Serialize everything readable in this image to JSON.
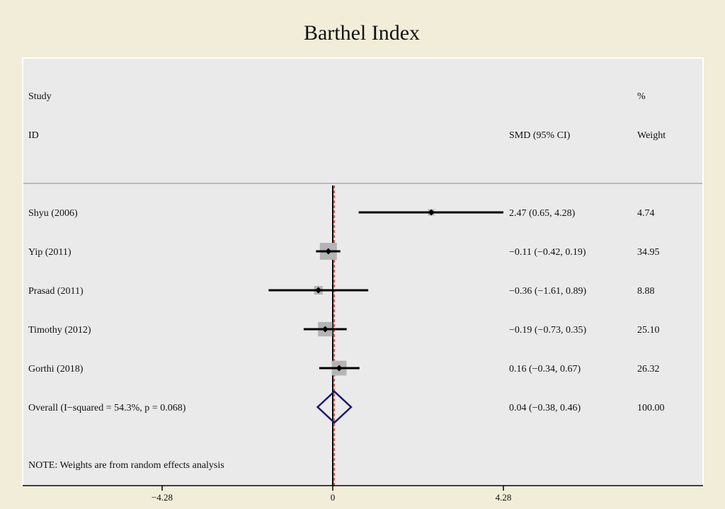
{
  "chart_data": {
    "type": "forest",
    "title": "Barthel Index",
    "headers": {
      "study_line1": "Study",
      "study_line2": "ID",
      "effect": "SMD (95% CI)",
      "weight_line1": "%",
      "weight_line2": "Weight"
    },
    "studies": [
      {
        "label": "Shyu (2006)",
        "effect": 2.47,
        "lower": 0.65,
        "upper": 4.28,
        "ci_text": "2.47 (0.65, 4.28)",
        "weight": 4.74,
        "weight_text": "4.74"
      },
      {
        "label": "Yip (2011)",
        "effect": -0.11,
        "lower": -0.42,
        "upper": 0.19,
        "ci_text": "−0.11 (−0.42, 0.19)",
        "weight": 34.95,
        "weight_text": "34.95"
      },
      {
        "label": "Prasad (2011)",
        "effect": -0.36,
        "lower": -1.61,
        "upper": 0.89,
        "ci_text": "−0.36 (−1.61, 0.89)",
        "weight": 8.88,
        "weight_text": "8.88"
      },
      {
        "label": "Timothy (2012)",
        "effect": -0.19,
        "lower": -0.73,
        "upper": 0.35,
        "ci_text": "−0.19 (−0.73, 0.35)",
        "weight": 25.1,
        "weight_text": "25.10"
      },
      {
        "label": "Gorthi (2018)",
        "effect": 0.16,
        "lower": -0.34,
        "upper": 0.67,
        "ci_text": "0.16 (−0.34, 0.67)",
        "weight": 26.32,
        "weight_text": "26.32"
      }
    ],
    "overall": {
      "label": "Overall  (I−squared = 54.3%, p = 0.068)",
      "effect": 0.04,
      "lower": -0.38,
      "upper": 0.46,
      "ci_text": "0.04 (−0.38, 0.46)",
      "weight_text": "100.00"
    },
    "note": "NOTE: Weights are from random effects analysis",
    "x_ticks": [
      {
        "value": -4.28,
        "label": "−4.28"
      },
      {
        "value": 0,
        "label": "0"
      },
      {
        "value": 4.28,
        "label": "4.28"
      }
    ],
    "xlim": [
      -4.28,
      4.28
    ],
    "colors": {
      "outer_background": "#f1edd9",
      "plot_background": "#eaeaea",
      "ci_line": "#000000",
      "weight_box": "#b4b4b4",
      "diamond": "#1a1a6e",
      "null_line": "#000000",
      "overall_line": "#c0392b"
    }
  }
}
